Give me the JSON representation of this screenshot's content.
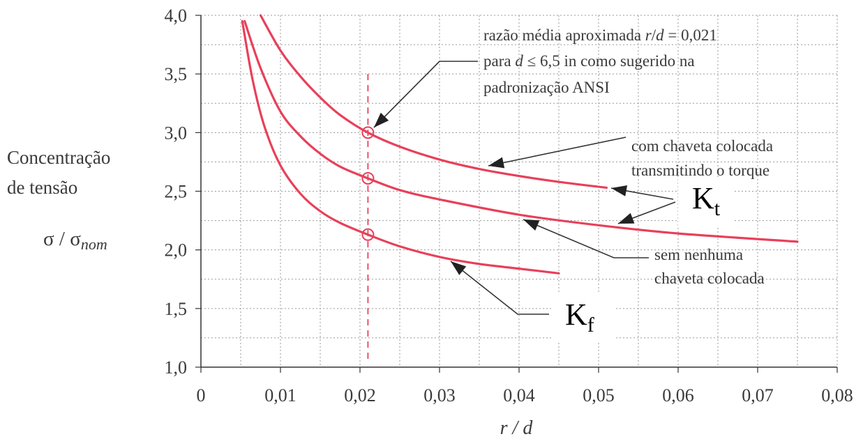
{
  "chart_data": {
    "type": "line",
    "title": "",
    "xlabel": "r / d",
    "ylabel_lines": [
      "Concentração",
      "de tensão"
    ],
    "ylabel_symbol": "σ / σ",
    "ylabel_symbol_sub": "nom",
    "xlim": [
      0,
      0.08
    ],
    "ylim": [
      1.0,
      4.0
    ],
    "x_ticks": [
      0,
      0.01,
      0.02,
      0.03,
      0.04,
      0.05,
      0.06,
      0.07,
      0.08
    ],
    "x_tick_labels": [
      "0",
      "0,01",
      "0,02",
      "0,03",
      "0,04",
      "0,05",
      "0,06",
      "0,07",
      "0,08"
    ],
    "y_ticks": [
      1.0,
      1.5,
      2.0,
      2.5,
      3.0,
      3.5,
      4.0
    ],
    "y_tick_labels": [
      "1,0",
      "1,5",
      "2,0",
      "2,5",
      "3,0",
      "3,5",
      "4,0"
    ],
    "grid": true,
    "reference_line_x": 0.021,
    "series": [
      {
        "key": "with_key",
        "color": "#e8405a",
        "x": [
          0.0075,
          0.01,
          0.0125,
          0.015,
          0.0175,
          0.021,
          0.025,
          0.03,
          0.035,
          0.04,
          0.045,
          0.051
        ],
        "y": [
          4.0,
          3.7,
          3.48,
          3.3,
          3.15,
          3.0,
          2.88,
          2.77,
          2.69,
          2.63,
          2.58,
          2.53
        ]
      },
      {
        "key": "without_key",
        "color": "#e8405a",
        "x": [
          0.0055,
          0.0075,
          0.01,
          0.0125,
          0.015,
          0.0175,
          0.021,
          0.025,
          0.03,
          0.04,
          0.05,
          0.06,
          0.075
        ],
        "y": [
          3.95,
          3.55,
          3.18,
          2.97,
          2.82,
          2.71,
          2.61,
          2.51,
          2.43,
          2.3,
          2.21,
          2.14,
          2.07
        ]
      },
      {
        "key": "kf",
        "color": "#e8405a",
        "x": [
          0.0052,
          0.0065,
          0.008,
          0.01,
          0.0125,
          0.015,
          0.0175,
          0.021,
          0.025,
          0.03,
          0.035,
          0.04,
          0.045
        ],
        "y": [
          3.95,
          3.45,
          3.05,
          2.72,
          2.48,
          2.33,
          2.23,
          2.13,
          2.03,
          1.94,
          1.88,
          1.84,
          1.8
        ]
      }
    ],
    "markers": [
      {
        "x": 0.021,
        "y": 3.0
      },
      {
        "x": 0.021,
        "y": 2.61
      },
      {
        "x": 0.021,
        "y": 2.13
      }
    ],
    "annotations": [
      {
        "key": "ansi",
        "lines": [
          "razão média aproximada r/d = 0,021",
          "para d ≤ 6,5 in como sugerido na",
          "padronização ANSI"
        ]
      },
      {
        "key": "with_key",
        "lines": [
          "com chaveta colocada",
          "transmitindo o torque"
        ]
      },
      {
        "key": "without_key",
        "lines": [
          "sem nenhuma",
          "chaveta colocada"
        ]
      }
    ],
    "kt_label": "K",
    "kt_sub": "t",
    "kf_label": "K",
    "kf_sub": "f"
  }
}
